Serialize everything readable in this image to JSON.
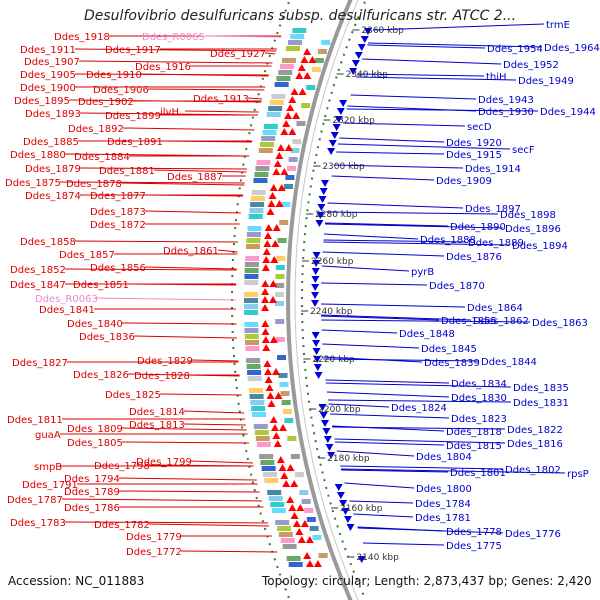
{
  "title": "Desulfovibrio desulfuricans subsp. desulfuricans str. ATCC 2...",
  "accession": "Accession: NC_011883",
  "topology": "Topology: circular; Length: 2,873,437 bp; Genes: 2,420",
  "colors": {
    "left_label": "#dd0000",
    "left_label_rna": "#ee88cc",
    "right_label": "#0000cc",
    "grey_arc": "#9a9a9a",
    "dotted_circle": "#2e7d32"
  },
  "kbp_ticks": [
    "2360 kbp",
    "2340 kbp",
    "2320 kbp",
    "2300 kbp",
    "2280 kbp",
    "2260 kbp",
    "2240 kbp",
    "2220 kbp",
    "2200 kbp",
    "2180 kbp",
    "2160 kbp",
    "2140 kbp"
  ],
  "left_labels": [
    {
      "text": "Ddes_1918",
      "rna": false
    },
    {
      "text": "Ddes_R0065",
      "rna": true
    },
    {
      "text": "Ddes_1911",
      "rna": false
    },
    {
      "text": "Ddes_1917",
      "rna": false
    },
    {
      "text": "Ddes_1927",
      "rna": false
    },
    {
      "text": "Ddes_1907",
      "rna": false
    },
    {
      "text": "Ddes_1916",
      "rna": false
    },
    {
      "text": "Ddes_1905",
      "rna": false
    },
    {
      "text": "Ddes_1910",
      "rna": false
    },
    {
      "text": "Ddes_1900",
      "rna": false
    },
    {
      "text": "Ddes_1906",
      "rna": false
    },
    {
      "text": "Ddes_1895",
      "rna": false
    },
    {
      "text": "Ddes_1902",
      "rna": false
    },
    {
      "text": "Ddes_1913",
      "rna": false
    },
    {
      "text": "Ddes_1893",
      "rna": false
    },
    {
      "text": "Ddes_1899",
      "rna": false
    },
    {
      "text": "ilvH",
      "rna": false
    },
    {
      "text": "Ddes_1892",
      "rna": false
    },
    {
      "text": "Ddes_1885",
      "rna": false
    },
    {
      "text": "Ddes_1891",
      "rna": false
    },
    {
      "text": "Ddes_1880",
      "rna": false
    },
    {
      "text": "Ddes_1884",
      "rna": false
    },
    {
      "text": "Ddes_1879",
      "rna": false
    },
    {
      "text": "Ddes_1881",
      "rna": false
    },
    {
      "text": "Ddes_1887",
      "rna": false
    },
    {
      "text": "Ddes_1875",
      "rna": false
    },
    {
      "text": "Ddes_1878",
      "rna": false
    },
    {
      "text": "Ddes_1874",
      "rna": false
    },
    {
      "text": "Ddes_1877",
      "rna": false
    },
    {
      "text": "Ddes_1873",
      "rna": false
    },
    {
      "text": "Ddes_1872",
      "rna": false
    },
    {
      "text": "Ddes_1858",
      "rna": false
    },
    {
      "text": "Ddes_1861",
      "rna": false
    },
    {
      "text": "Ddes_1857",
      "rna": false
    },
    {
      "text": "Ddes_1852",
      "rna": false
    },
    {
      "text": "Ddes_1856",
      "rna": false
    },
    {
      "text": "Ddes_1847",
      "rna": false
    },
    {
      "text": "Ddes_1851",
      "rna": false
    },
    {
      "text": "Ddes_R0063",
      "rna": true
    },
    {
      "text": "Ddes_1841",
      "rna": false
    },
    {
      "text": "Ddes_1840",
      "rna": false
    },
    {
      "text": "Ddes_1836",
      "rna": false
    },
    {
      "text": "Ddes_1827",
      "rna": false
    },
    {
      "text": "Ddes_1829",
      "rna": false
    },
    {
      "text": "Ddes_1826",
      "rna": false
    },
    {
      "text": "Ddes_1828",
      "rna": false
    },
    {
      "text": "Ddes_1825",
      "rna": false
    },
    {
      "text": "Ddes_1814",
      "rna": false
    },
    {
      "text": "Ddes_1811",
      "rna": false
    },
    {
      "text": "Ddes_1813",
      "rna": false
    },
    {
      "text": "Ddes_1809",
      "rna": false
    },
    {
      "text": "guaA",
      "rna": false
    },
    {
      "text": "Ddes_1805",
      "rna": false
    },
    {
      "text": "Ddes_1799",
      "rna": false
    },
    {
      "text": "smpB",
      "rna": false
    },
    {
      "text": "Ddes_1798",
      "rna": false
    },
    {
      "text": "Ddes_1794",
      "rna": false
    },
    {
      "text": "Ddes_1791",
      "rna": false
    },
    {
      "text": "Ddes_1789",
      "rna": false
    },
    {
      "text": "Ddes_1787",
      "rna": false
    },
    {
      "text": "Ddes_1786",
      "rna": false
    },
    {
      "text": "Ddes_1783",
      "rna": false
    },
    {
      "text": "Ddes_1782",
      "rna": false
    },
    {
      "text": "Ddes_1779",
      "rna": false
    },
    {
      "text": "Ddes_1772",
      "rna": false
    }
  ],
  "right_labels": [
    "trmE",
    "Ddes_1954",
    "Ddes_1964",
    "Ddes_1952",
    "thiH",
    "Ddes_1949",
    "Ddes_1943",
    "Ddes_1930",
    "Ddes_1944",
    "secD",
    "Ddes_1920",
    "secF",
    "Ddes_1915",
    "Ddes_1914",
    "Ddes_1909",
    "Ddes_1897",
    "Ddes_1898",
    "Ddes_1890",
    "Ddes_1896",
    "Ddes_1888",
    "Ddes_1889",
    "Ddes_1894",
    "Ddes_1876",
    "pyrB",
    "Ddes_1870",
    "Ddes_1864",
    "Ddes_1855",
    "Ddes_1862",
    "Ddes_1863",
    "Ddes_1848",
    "Ddes_1845",
    "Ddes_1839",
    "Ddes_1844",
    "Ddes_1834",
    "Ddes_1835",
    "Ddes_1830",
    "Ddes_1831",
    "Ddes_1824",
    "Ddes_1823",
    "Ddes_1818",
    "Ddes_1822",
    "Ddes_1815",
    "Ddes_1816",
    "Ddes_1804",
    "Ddes_1801",
    "Ddes_1802",
    "rpsP",
    "Ddes_1800",
    "Ddes_1784",
    "Ddes_1781",
    "Ddes_1778",
    "Ddes_1776",
    "Ddes_1775"
  ]
}
